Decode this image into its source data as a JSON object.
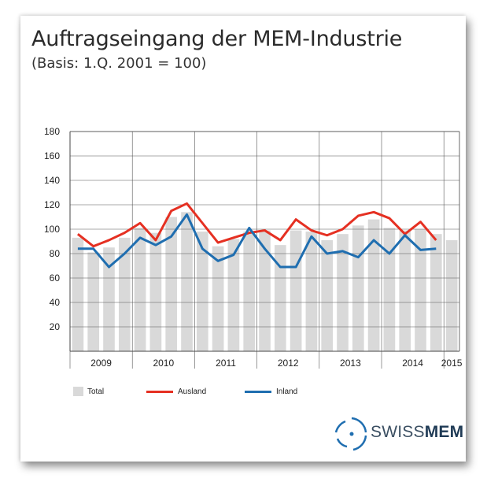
{
  "chart_data": {
    "type": "bar+line",
    "title": "Auftragseingang der MEM-Industrie",
    "subtitle": "(Basis: 1.Q. 2001 = 100)",
    "quarters": [
      "2009 Q1",
      "2009 Q2",
      "2009 Q3",
      "2009 Q4",
      "2010 Q1",
      "2010 Q2",
      "2010 Q3",
      "2010 Q4",
      "2011 Q1",
      "2011 Q2",
      "2011 Q3",
      "2011 Q4",
      "2012 Q1",
      "2012 Q2",
      "2012 Q3",
      "2012 Q4",
      "2013 Q1",
      "2013 Q2",
      "2013 Q3",
      "2013 Q4",
      "2014 Q1",
      "2014 Q2",
      "2014 Q3",
      "2014 Q4",
      "2015 Q1"
    ],
    "x_tick_labels": [
      "2009",
      "2010",
      "2011",
      "2012",
      "2013",
      "2014",
      "2015"
    ],
    "y_tick_labels": [
      "20",
      "40",
      "60",
      "80",
      "100",
      "120",
      "140",
      "160",
      "180"
    ],
    "ylim": [
      0,
      180
    ],
    "grid": true,
    "series": [
      {
        "name": "Total",
        "kind": "bar",
        "color": "#d9d9d9",
        "values": [
          93,
          81,
          85,
          93,
          101,
          97,
          110,
          114,
          98,
          86,
          92,
          98,
          99,
          87,
          99,
          98,
          91,
          96,
          103,
          108,
          101,
          99,
          100,
          96,
          91
        ]
      },
      {
        "name": "Ausland",
        "kind": "line",
        "color": "#e53022",
        "values": [
          96,
          86,
          91,
          97,
          105,
          91,
          115,
          121,
          105,
          89,
          93,
          97,
          99,
          91,
          108,
          99,
          95,
          100,
          111,
          114,
          109,
          96,
          106,
          91,
          null
        ]
      },
      {
        "name": "Inland",
        "kind": "line",
        "color": "#1f6eb0",
        "values": [
          84,
          84,
          69,
          80,
          93,
          87,
          94,
          112,
          84,
          74,
          79,
          101,
          84,
          69,
          69,
          94,
          80,
          82,
          77,
          91,
          80,
          95,
          83,
          84,
          null
        ]
      }
    ],
    "legend_position": "bottom"
  },
  "legend": {
    "total": "Total",
    "ausland": "Ausland",
    "inland": "Inland"
  },
  "logo": {
    "text_light": "SWISS",
    "text_bold": "MEM",
    "icon": "swissmem-arc-logo-icon"
  },
  "colors": {
    "bar": "#d9d9d9",
    "ausland": "#e53022",
    "inland": "#1f6eb0",
    "grid": "#555555"
  }
}
